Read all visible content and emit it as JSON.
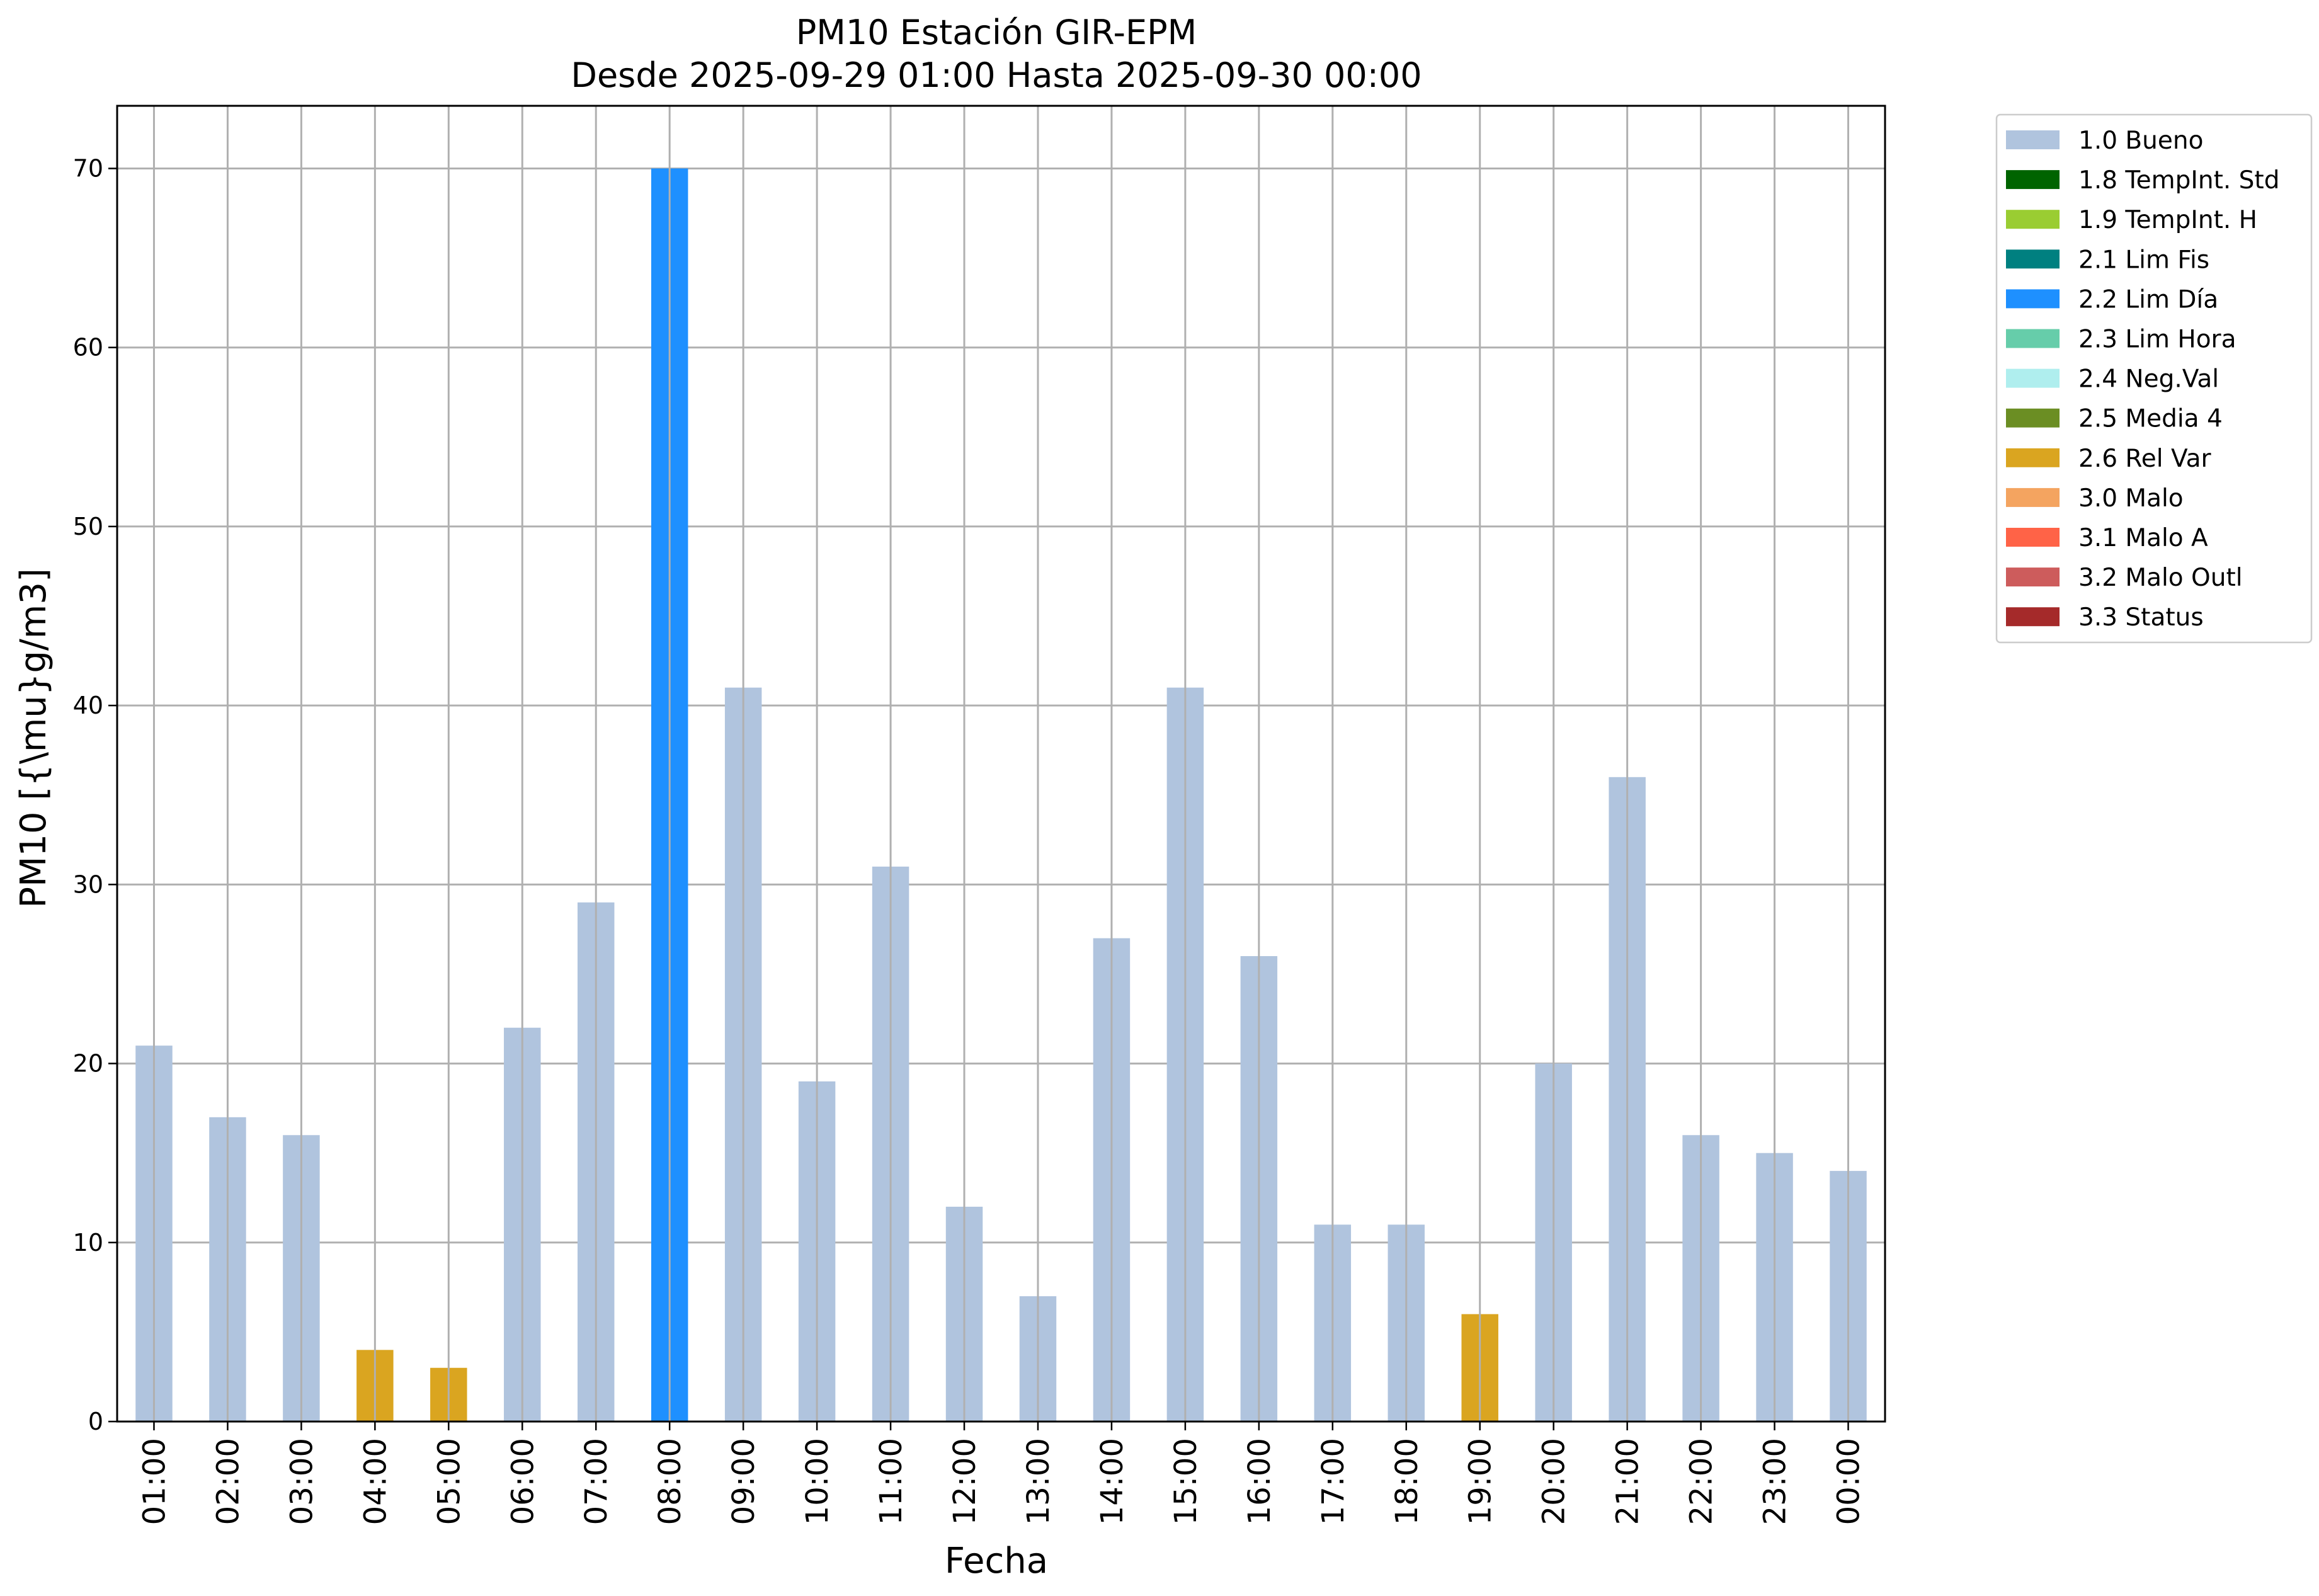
{
  "chart_data": {
    "type": "bar",
    "title": "PM10 Estación GIR-EPM",
    "subtitle": "Desde 2025-09-29 01:00 Hasta 2025-09-30 00:00",
    "xlabel": "Fecha",
    "ylabel": "PM10 [{\\mu}g/m3]",
    "ylim": [
      0,
      73.5
    ],
    "yticks": [
      0,
      10,
      20,
      30,
      40,
      50,
      60,
      70
    ],
    "grid": true,
    "legend_position": "outside-top-right",
    "categories": [
      "01:00",
      "02:00",
      "03:00",
      "04:00",
      "05:00",
      "06:00",
      "07:00",
      "08:00",
      "09:00",
      "10:00",
      "11:00",
      "12:00",
      "13:00",
      "14:00",
      "15:00",
      "16:00",
      "17:00",
      "18:00",
      "19:00",
      "20:00",
      "21:00",
      "22:00",
      "23:00",
      "00:00"
    ],
    "values": [
      21,
      17,
      16,
      4,
      3,
      22,
      29,
      70,
      41,
      19,
      31,
      12,
      7,
      27,
      41,
      26,
      11,
      11,
      6,
      20,
      36,
      16,
      15,
      14
    ],
    "flags": [
      "1.0 Bueno",
      "1.0 Bueno",
      "1.0 Bueno",
      "2.6 Rel Var",
      "2.6 Rel Var",
      "1.0 Bueno",
      "1.0 Bueno",
      "2.2 Lim Día",
      "1.0 Bueno",
      "1.0 Bueno",
      "1.0 Bueno",
      "1.0 Bueno",
      "1.0 Bueno",
      "1.0 Bueno",
      "1.0 Bueno",
      "1.0 Bueno",
      "1.0 Bueno",
      "1.0 Bueno",
      "2.6 Rel Var",
      "1.0 Bueno",
      "1.0 Bueno",
      "1.0 Bueno",
      "1.0 Bueno",
      "1.0 Bueno"
    ],
    "legend": [
      {
        "name": "1.0 Bueno",
        "color": "#b0c4de"
      },
      {
        "name": "1.8 TempInt. Std",
        "color": "#006400"
      },
      {
        "name": "1.9 TempInt. H",
        "color": "#9acd32"
      },
      {
        "name": "2.1 Lim Fis",
        "color": "#008080"
      },
      {
        "name": "2.2 Lim Día",
        "color": "#1e90ff"
      },
      {
        "name": "2.3 Lim Hora",
        "color": "#66cdaa"
      },
      {
        "name": "2.4 Neg.Val",
        "color": "#afeeee"
      },
      {
        "name": "2.5 Media 4",
        "color": "#6b8e23"
      },
      {
        "name": "2.6 Rel Var",
        "color": "#daa520"
      },
      {
        "name": "3.0 Malo",
        "color": "#f4a460"
      },
      {
        "name": "3.1 Malo A",
        "color": "#ff6347"
      },
      {
        "name": "3.2 Malo Outl",
        "color": "#cd5c5c"
      },
      {
        "name": "3.3 Status",
        "color": "#a52a2a"
      }
    ]
  }
}
